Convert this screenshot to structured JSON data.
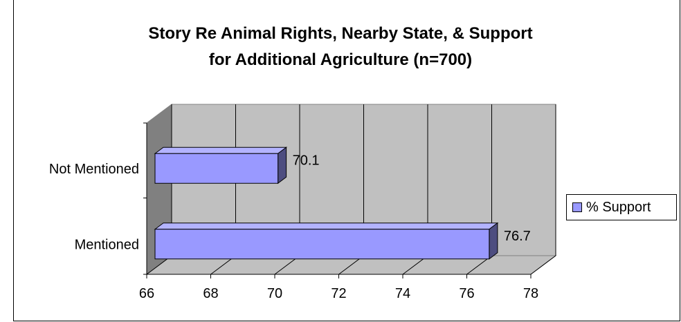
{
  "chart_data": {
    "type": "bar",
    "orientation": "horizontal",
    "title_lines": [
      "Story Re Animal Rights, Nearby State, & Support",
      "for Additional Agriculture (n=700)"
    ],
    "categories": [
      "Not Mentioned",
      "Mentioned"
    ],
    "series": [
      {
        "name": "% Support",
        "values": [
          70.1,
          76.7
        ],
        "color": "#9999ff"
      }
    ],
    "data_labels": [
      "70.1",
      "76.7"
    ],
    "xlim": [
      66,
      78
    ],
    "x_ticks": [
      "66",
      "68",
      "70",
      "72",
      "74",
      "76",
      "78"
    ],
    "grid": true,
    "legend_position": "right",
    "style": "3d"
  }
}
